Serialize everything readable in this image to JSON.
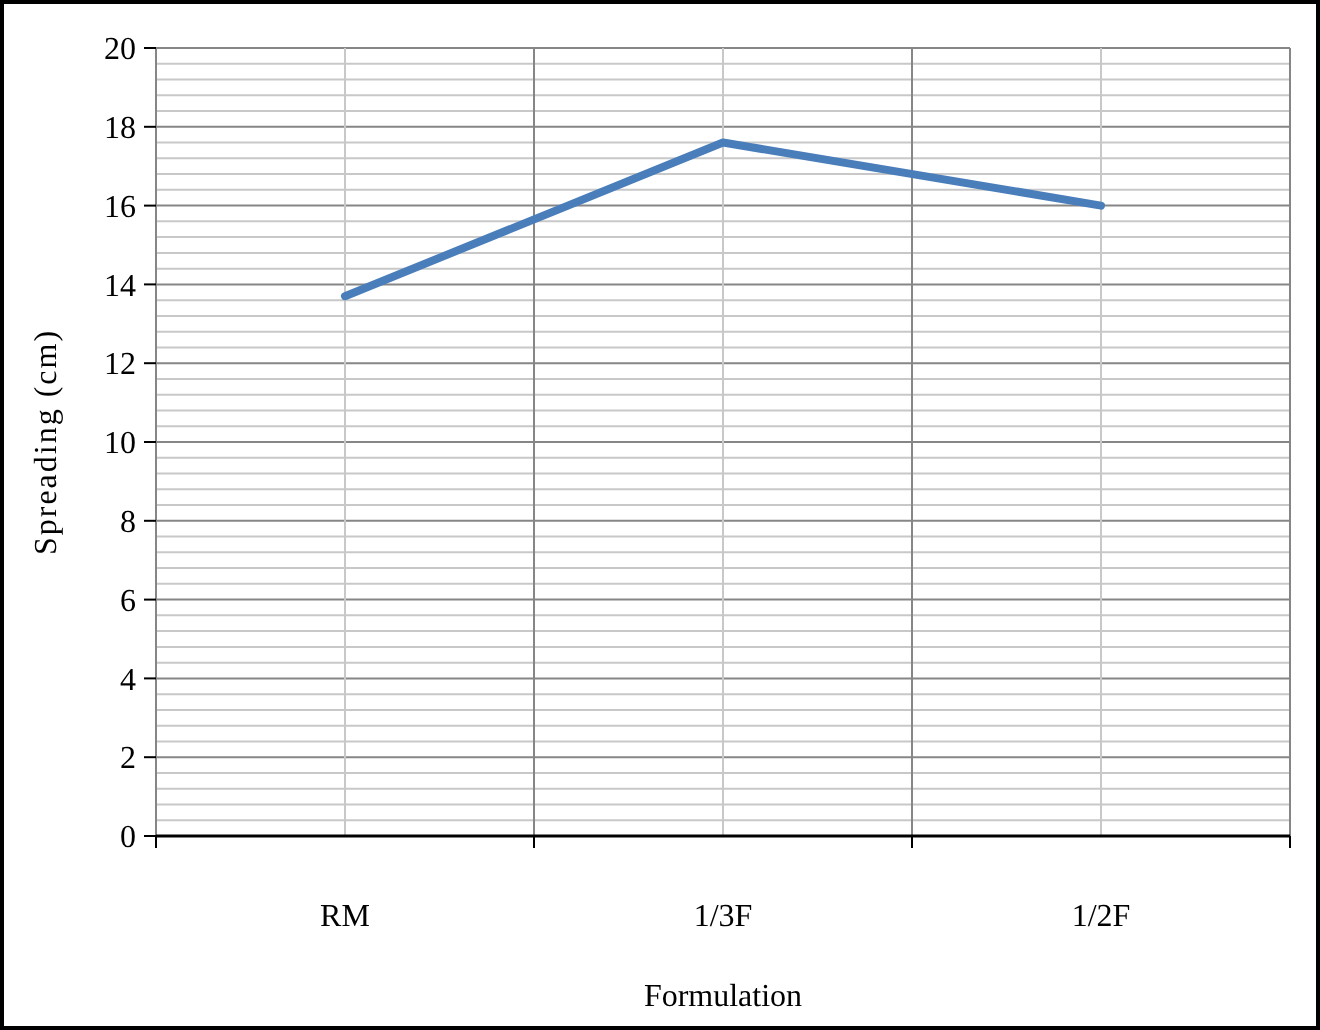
{
  "chart_data": {
    "type": "line",
    "xlabel": "Formulation",
    "ylabel": "Spreading (cm)",
    "categories": [
      "RM",
      "1/3F",
      "1/2F"
    ],
    "series": [
      {
        "color": "#4a7ebb",
        "values": [
          13.7,
          17.6,
          16.0
        ]
      }
    ],
    "ylim": [
      0,
      20
    ],
    "yticks": [
      0,
      2,
      4,
      6,
      8,
      10,
      12,
      14,
      16,
      18,
      20
    ],
    "grid": true,
    "marker": "none",
    "line_style": "solid"
  }
}
